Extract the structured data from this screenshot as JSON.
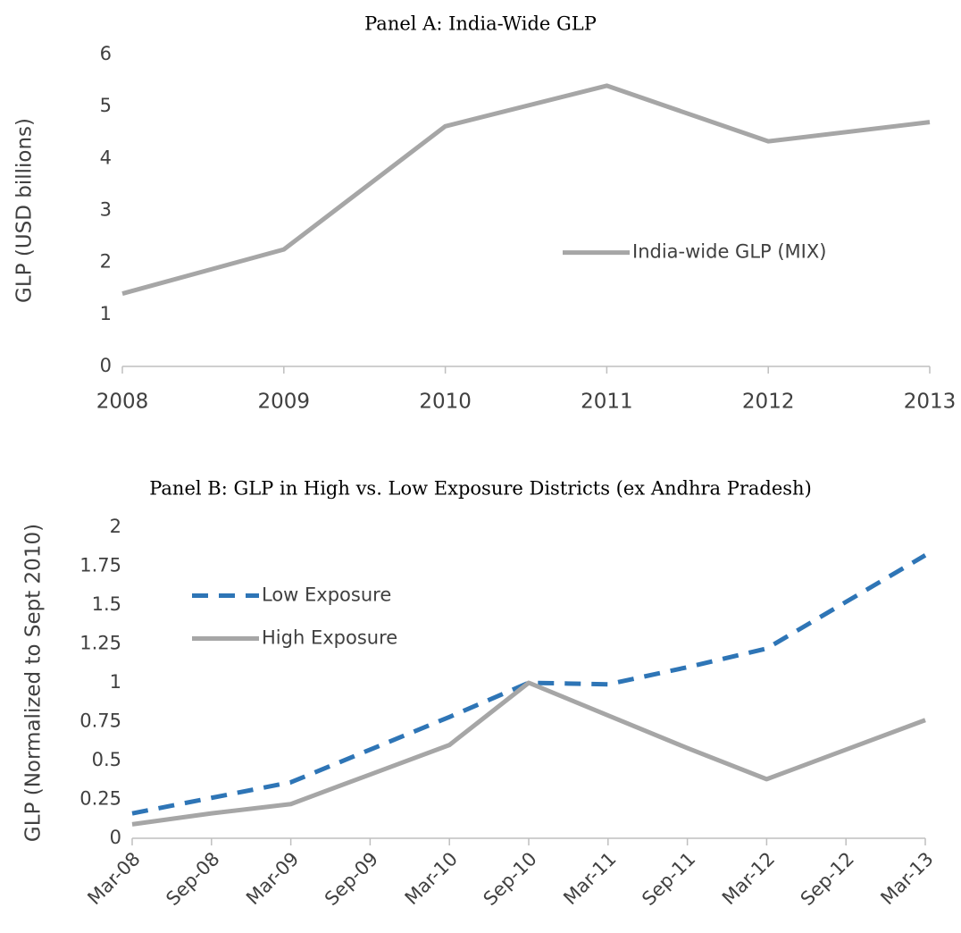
{
  "chart_data": [
    {
      "type": "line",
      "title": "Panel A: India-Wide GLP",
      "y_label": "GLP (USD billions)",
      "categories": [
        "2008",
        "2009",
        "2010",
        "2011",
        "2012",
        "2013"
      ],
      "series": [
        {
          "name": "India-wide GLP (MIX)",
          "color": "#a6a6a6",
          "dashed": false,
          "values": [
            1.4,
            2.25,
            4.62,
            5.4,
            4.33,
            4.7
          ]
        }
      ],
      "ylim": [
        0,
        6
      ],
      "yticks": [
        0,
        1,
        2,
        3,
        4,
        5,
        6
      ],
      "grid": false,
      "legend": "center-right",
      "rotate_x_labels": false
    },
    {
      "type": "line",
      "title": "Panel B: GLP in High vs. Low Exposure Districts (ex Andhra Pradesh)",
      "y_label": "GLP (Normalized to Sept 2010)",
      "categories": [
        "Mar-08",
        "Sep-08",
        "Mar-09",
        "Sep-09",
        "Mar-10",
        "Sep-10",
        "Mar-11",
        "Sep-11",
        "Mar-12",
        "Sep-12",
        "Mar-13"
      ],
      "series": [
        {
          "name": "Low Exposure",
          "color": "#2e75b6",
          "dashed": true,
          "values": [
            0.16,
            0.26,
            0.36,
            0.57,
            0.78,
            1.0,
            0.99,
            1.1,
            1.22,
            1.52,
            1.82
          ]
        },
        {
          "name": "High Exposure",
          "color": "#a6a6a6",
          "dashed": false,
          "values": [
            0.09,
            0.16,
            0.22,
            0.41,
            0.6,
            1.0,
            0.79,
            0.58,
            0.38,
            0.57,
            0.76
          ]
        }
      ],
      "ylim": [
        0,
        2
      ],
      "yticks": [
        0,
        0.25,
        0.5,
        0.75,
        1,
        1.25,
        1.5,
        1.75,
        2
      ],
      "grid": false,
      "legend": "upper-left",
      "rotate_x_labels": true
    }
  ]
}
